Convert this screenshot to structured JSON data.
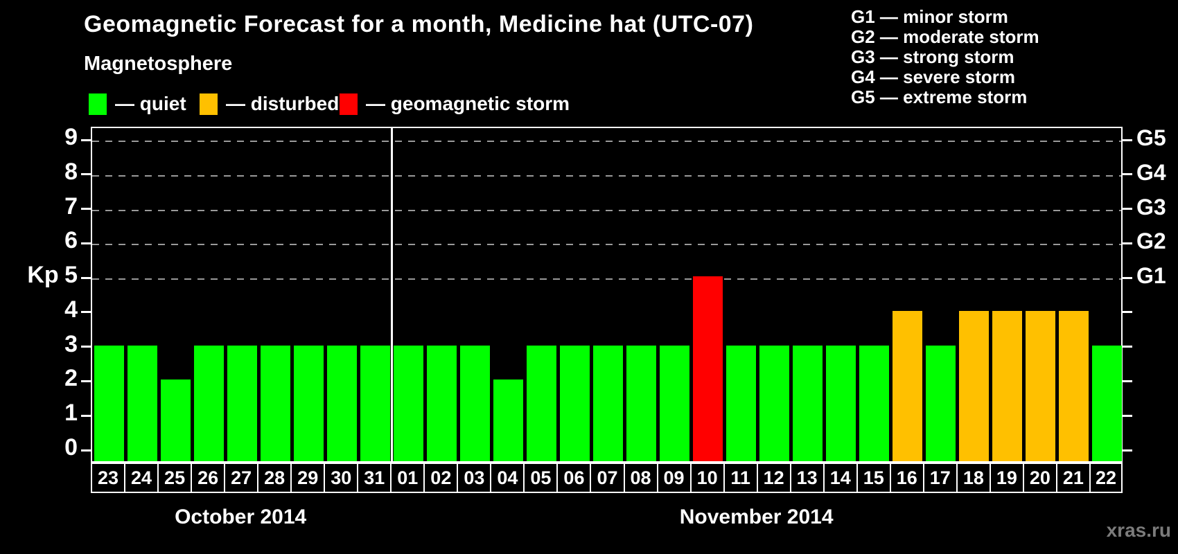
{
  "header": {
    "title": "Geomagnetic Forecast for a month, Medicine hat (UTC-07)",
    "subtitle": "Magnetosphere"
  },
  "legend": {
    "items": [
      {
        "key": "quiet",
        "label": "— quiet",
        "color": "#00ff00"
      },
      {
        "key": "disturbed",
        "label": "— disturbed",
        "color": "#ffc000"
      },
      {
        "key": "storm",
        "label": "— geomagnetic storm",
        "color": "#ff0000"
      }
    ]
  },
  "g_scale_legend": {
    "lines": [
      "G1 — minor storm",
      "G2 — moderate storm",
      "G3 — strong storm",
      "G4 — severe storm",
      "G5 — extreme storm"
    ]
  },
  "watermark": "xras.ru",
  "chart_data": {
    "type": "bar",
    "title": "Geomagnetic Forecast for a month, Medicine hat (UTC-07)",
    "ylabel": "Kp",
    "ylim": [
      0,
      9
    ],
    "yticks": [
      0,
      1,
      2,
      3,
      4,
      5,
      6,
      7,
      8,
      9
    ],
    "grid_levels": [
      5,
      6,
      7,
      8,
      9
    ],
    "grid": "dashed horizontal lines at storm levels only",
    "legend_position": "top-left",
    "right_axis": [
      {
        "level": 5,
        "label": "G1"
      },
      {
        "level": 6,
        "label": "G2"
      },
      {
        "level": 7,
        "label": "G3"
      },
      {
        "level": 8,
        "label": "G4"
      },
      {
        "level": 9,
        "label": "G5"
      }
    ],
    "status_colors": {
      "quiet": "#00ff00",
      "disturbed": "#ffc000",
      "storm": "#ff0000"
    },
    "months": [
      {
        "label": "October 2014",
        "day_count": 9
      },
      {
        "label": "November 2014",
        "day_count": 22
      }
    ],
    "categories": [
      "23",
      "24",
      "25",
      "26",
      "27",
      "28",
      "29",
      "30",
      "31",
      "01",
      "02",
      "03",
      "04",
      "05",
      "06",
      "07",
      "08",
      "09",
      "10",
      "11",
      "12",
      "13",
      "14",
      "15",
      "16",
      "17",
      "18",
      "19",
      "20",
      "21",
      "22"
    ],
    "values": [
      3,
      3,
      2,
      3,
      3,
      3,
      3,
      3,
      3,
      3,
      3,
      3,
      2,
      3,
      3,
      3,
      3,
      3,
      5,
      3,
      3,
      3,
      3,
      3,
      4,
      3,
      4,
      4,
      4,
      4,
      3
    ],
    "statuses": [
      "quiet",
      "quiet",
      "quiet",
      "quiet",
      "quiet",
      "quiet",
      "quiet",
      "quiet",
      "quiet",
      "quiet",
      "quiet",
      "quiet",
      "quiet",
      "quiet",
      "quiet",
      "quiet",
      "quiet",
      "quiet",
      "storm",
      "quiet",
      "quiet",
      "quiet",
      "quiet",
      "quiet",
      "disturbed",
      "quiet",
      "disturbed",
      "disturbed",
      "disturbed",
      "disturbed",
      "quiet"
    ]
  }
}
